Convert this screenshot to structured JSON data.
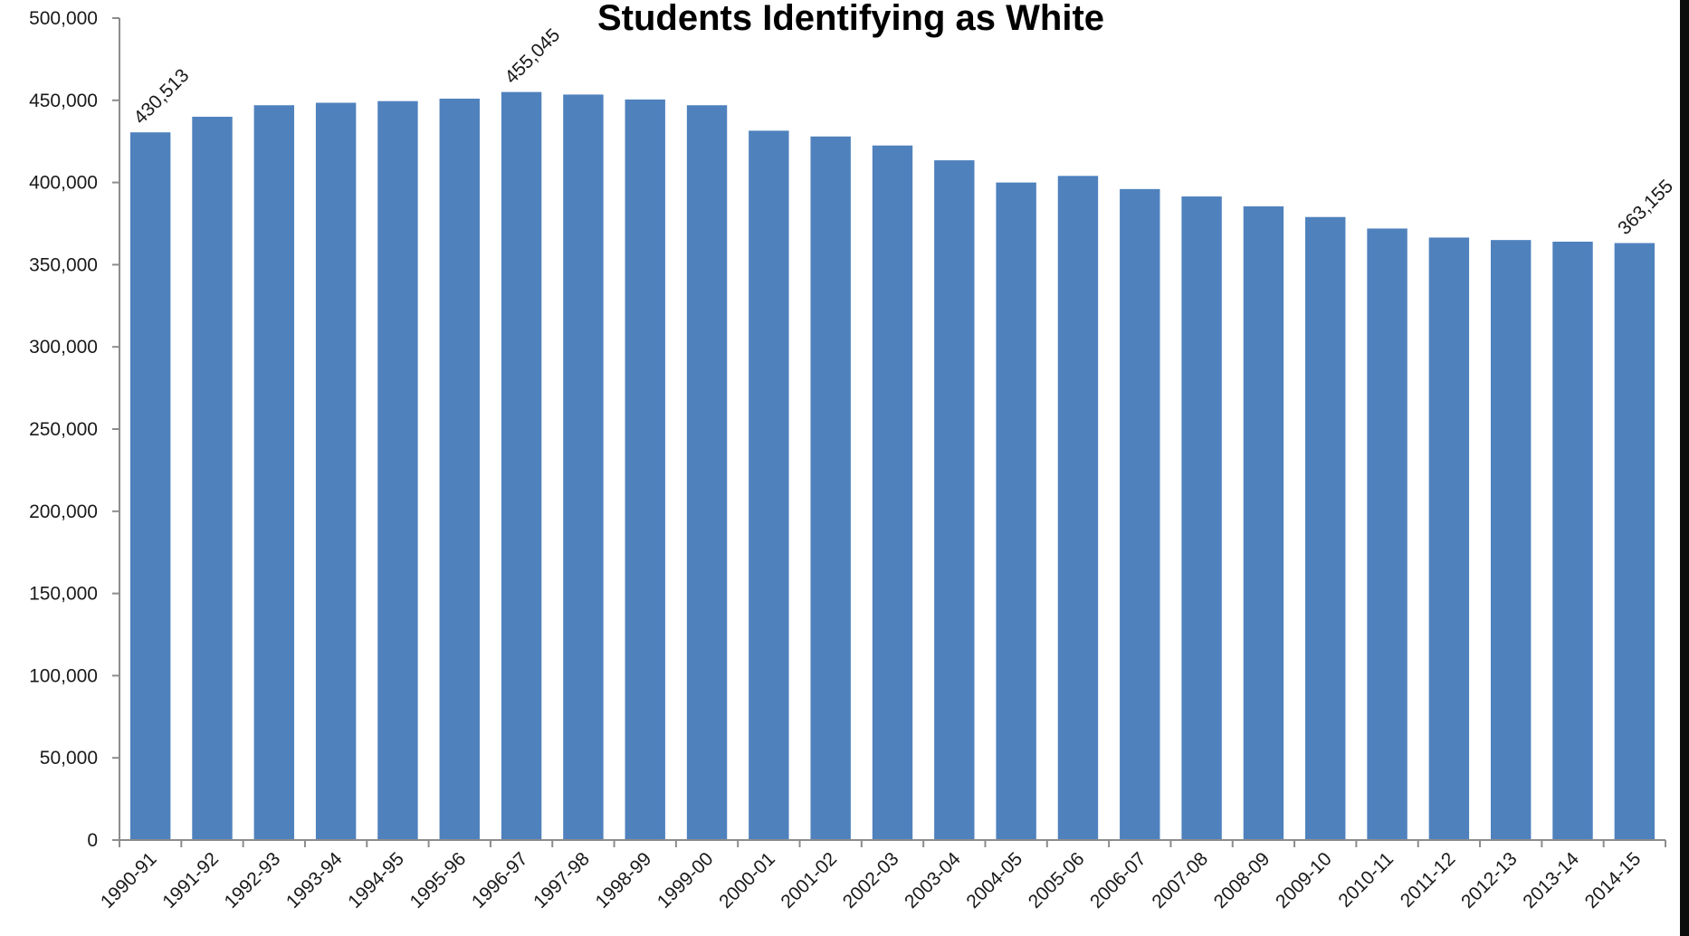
{
  "chart_data": {
    "type": "bar",
    "title": "Students Identifying as White",
    "xlabel": "",
    "ylabel": "",
    "ylim": [
      0,
      500000
    ],
    "yticks": [
      0,
      50000,
      100000,
      150000,
      200000,
      250000,
      300000,
      350000,
      400000,
      450000,
      500000
    ],
    "ytick_labels": [
      "0",
      "50,000",
      "100,000",
      "150,000",
      "200,000",
      "250,000",
      "300,000",
      "350,000",
      "400,000",
      "450,000",
      "500,000"
    ],
    "categories": [
      "1990-91",
      "1991-92",
      "1992-93",
      "1993-94",
      "1994-95",
      "1995-96",
      "1996-97",
      "1997-98",
      "1998-99",
      "1999-00",
      "2000-01",
      "2001-02",
      "2002-03",
      "2003-04",
      "2004-05",
      "2005-06",
      "2006-07",
      "2007-08",
      "2008-09",
      "2009-10",
      "2010-11",
      "2011-12",
      "2012-13",
      "2013-14",
      "2014-15"
    ],
    "values": [
      430513,
      440000,
      447000,
      448500,
      449500,
      451000,
      455045,
      453500,
      450500,
      447000,
      431500,
      428000,
      422500,
      413500,
      400000,
      404000,
      396000,
      391500,
      385500,
      379000,
      372000,
      366500,
      365000,
      364000,
      363155
    ],
    "data_labels": [
      {
        "category": "1990-91",
        "text": "430,513"
      },
      {
        "category": "1996-97",
        "text": "455,045"
      },
      {
        "category": "2014-15",
        "text": "363,155"
      }
    ],
    "grid": false,
    "legend": "none",
    "bar_color": "#4f81bd"
  }
}
